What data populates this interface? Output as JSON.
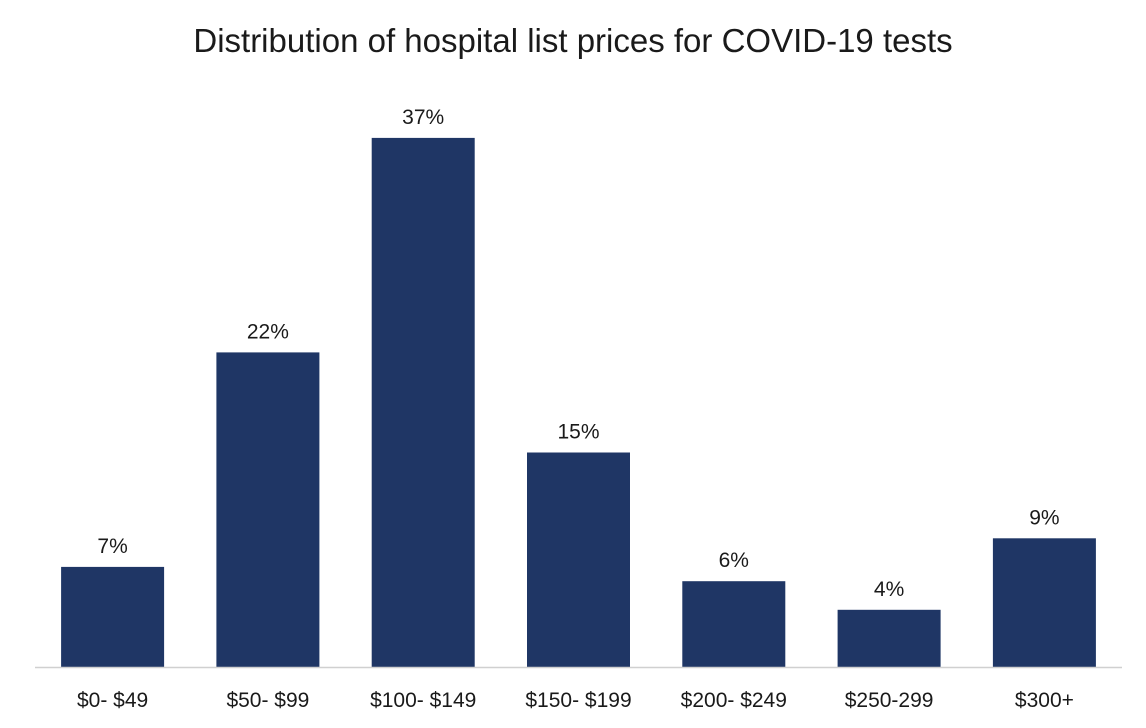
{
  "chart_data": {
    "type": "bar",
    "title": "Distribution of hospital list prices for COVID-19 tests",
    "xlabel": "",
    "ylabel": "",
    "categories": [
      "$0- $49",
      "$50- $99",
      "$100- $149",
      "$150- $199",
      "$200- $249",
      "$250-299",
      "$300+"
    ],
    "values": [
      7,
      22,
      37,
      15,
      6,
      4,
      9
    ],
    "value_labels": [
      "7%",
      "22%",
      "37%",
      "15%",
      "6%",
      "4%",
      "9%"
    ],
    "unit": "%",
    "ylim": [
      0,
      40
    ],
    "grid": false,
    "legend": "none",
    "bar_color": "#1f3665",
    "axis_color": "#d0d0d0"
  }
}
